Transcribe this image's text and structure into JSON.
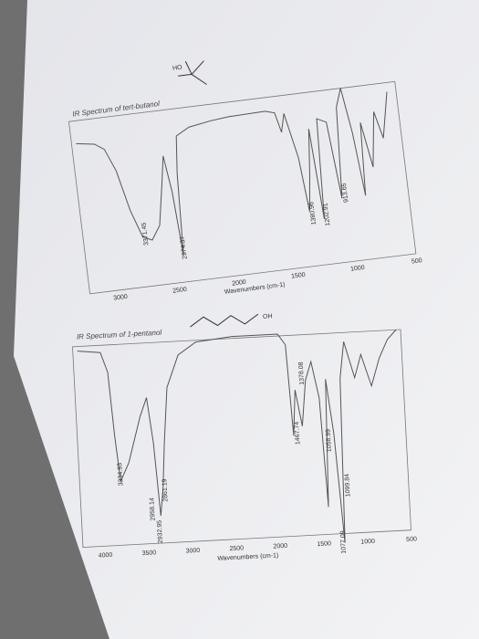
{
  "spectra": [
    {
      "title": "IR Spectrum of tert-butanol",
      "structure_label": "HO",
      "x_axis_label": "Wavenumbers (cm-1)",
      "x_ticks": [
        "3000",
        "2500",
        "2000",
        "1500",
        "1000",
        "500"
      ],
      "peak_labels": [
        "3371.45",
        "2974.37",
        "1380.96",
        "1202.91",
        "913.65"
      ]
    },
    {
      "title": "IR Spectrum of 1-pentanol",
      "structure_label": "OH",
      "x_axis_label": "Wavenumbers (cm-1)",
      "x_ticks": [
        "4000",
        "3500",
        "3000",
        "2500",
        "2000",
        "1500",
        "1000",
        "500"
      ],
      "peak_labels": [
        "3334.93",
        "2958.14",
        "2932.95",
        "2861.19",
        "1467.74",
        "1378.08",
        "1077.09",
        "1099.84",
        "1058.99"
      ]
    }
  ]
}
